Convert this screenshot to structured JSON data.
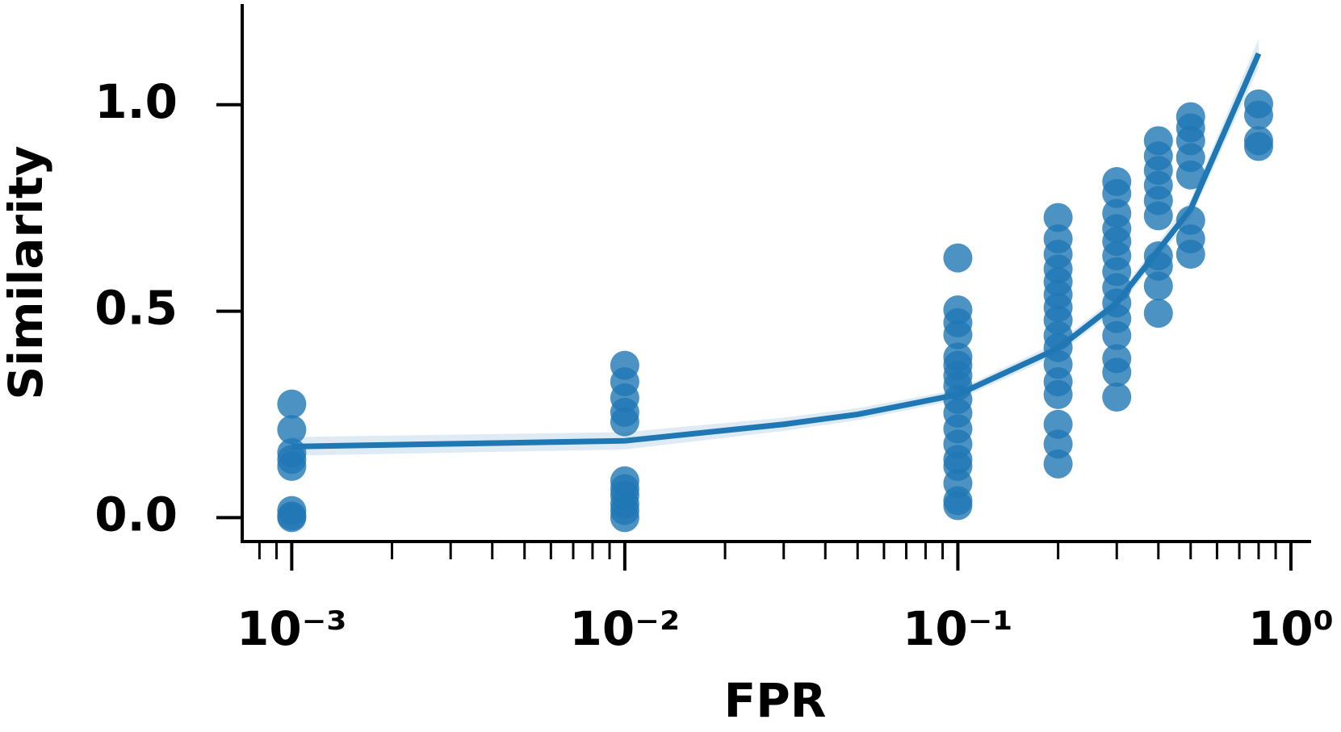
{
  "chart_data": {
    "type": "scatter",
    "xlabel": "FPR",
    "ylabel": "Similarity",
    "xscale": "log",
    "color": "#1f77b4",
    "xlim": [
      0.00071,
      1.15
    ],
    "ylim": [
      -0.058,
      1.244
    ],
    "xticks": [
      {
        "value": 0.001,
        "label": "10⁻³"
      },
      {
        "value": 0.01,
        "label": "10⁻²"
      },
      {
        "value": 0.1,
        "label": "10⁻¹"
      },
      {
        "value": 1,
        "label": "10⁰"
      }
    ],
    "xminorticks": [
      0.0008,
      0.0009,
      0.002,
      0.003,
      0.004,
      0.005,
      0.006,
      0.007,
      0.008,
      0.009,
      0.02,
      0.03,
      0.04,
      0.05,
      0.06,
      0.07,
      0.08,
      0.09,
      0.2,
      0.3,
      0.4,
      0.5,
      0.6,
      0.7,
      0.8,
      0.9
    ],
    "yticks": [
      {
        "value": 0,
        "label": "0.0"
      },
      {
        "value": 0.5,
        "label": "0.5"
      },
      {
        "value": 1,
        "label": "1.0"
      }
    ],
    "series": [
      {
        "color": "#1f77b4",
        "x": [
          0.001,
          0.001,
          0.001,
          0.001,
          0.001,
          0.001,
          0.001,
          0.001,
          0.01,
          0.01,
          0.01,
          0.01,
          0.01,
          0.01,
          0.01,
          0.01,
          0.01,
          0.01,
          0.01,
          0.1,
          0.1,
          0.1,
          0.1,
          0.1,
          0.1,
          0.1,
          0.1,
          0.1,
          0.1,
          0.1,
          0.1,
          0.1,
          0.1,
          0.1,
          0.1,
          0.1,
          0.2,
          0.2,
          0.2,
          0.2,
          0.2,
          0.2,
          0.2,
          0.2,
          0.2,
          0.2,
          0.2,
          0.2,
          0.2,
          0.2,
          0.2,
          0.2,
          0.3,
          0.3,
          0.3,
          0.3,
          0.3,
          0.3,
          0.3,
          0.3,
          0.3,
          0.3,
          0.3,
          0.3,
          0.3,
          0.3,
          0.4,
          0.4,
          0.4,
          0.4,
          0.4,
          0.4,
          0.4,
          0.4,
          0.4,
          0.4,
          0.5,
          0.5,
          0.5,
          0.5,
          0.5,
          0.5,
          0.5,
          0.5,
          0.8,
          0.8,
          0.8,
          0.8
        ],
        "values": [
          0.275,
          0.213,
          0.157,
          0.141,
          0.124,
          0.017,
          0.004,
          0,
          0.369,
          0.329,
          0.29,
          0.255,
          0.232,
          0.089,
          0.07,
          0.054,
          0.033,
          0.017,
          0,
          0.629,
          0.503,
          0.472,
          0.443,
          0.389,
          0.369,
          0.344,
          0.319,
          0.286,
          0.253,
          0.215,
          0.178,
          0.141,
          0.124,
          0.083,
          0.041,
          0.029,
          0.727,
          0.675,
          0.638,
          0.602,
          0.571,
          0.54,
          0.509,
          0.478,
          0.441,
          0.412,
          0.371,
          0.329,
          0.298,
          0.226,
          0.178,
          0.13,
          0.814,
          0.785,
          0.737,
          0.7,
          0.669,
          0.634,
          0.596,
          0.557,
          0.52,
          0.482,
          0.441,
          0.385,
          0.352,
          0.292,
          0.913,
          0.876,
          0.841,
          0.805,
          0.768,
          0.731,
          0.634,
          0.609,
          0.561,
          0.495,
          0.971,
          0.944,
          0.913,
          0.872,
          0.83,
          0.72,
          0.675,
          0.638,
          1.002,
          0.975,
          0.913,
          0.899
        ]
      }
    ],
    "fit": {
      "color": "#1f77b4",
      "x": [
        0.001,
        0.01,
        0.03,
        0.05,
        0.1,
        0.2,
        0.3,
        0.5,
        0.8
      ],
      "values": [
        0.172,
        0.186,
        0.226,
        0.25,
        0.298,
        0.41,
        0.52,
        0.747,
        1.124
      ],
      "lower": [
        0.15,
        0.165,
        0.21,
        0.236,
        0.285,
        0.395,
        0.505,
        0.725,
        1.09
      ],
      "upper": [
        0.195,
        0.207,
        0.242,
        0.265,
        0.31,
        0.425,
        0.535,
        0.77,
        1.16
      ]
    }
  }
}
